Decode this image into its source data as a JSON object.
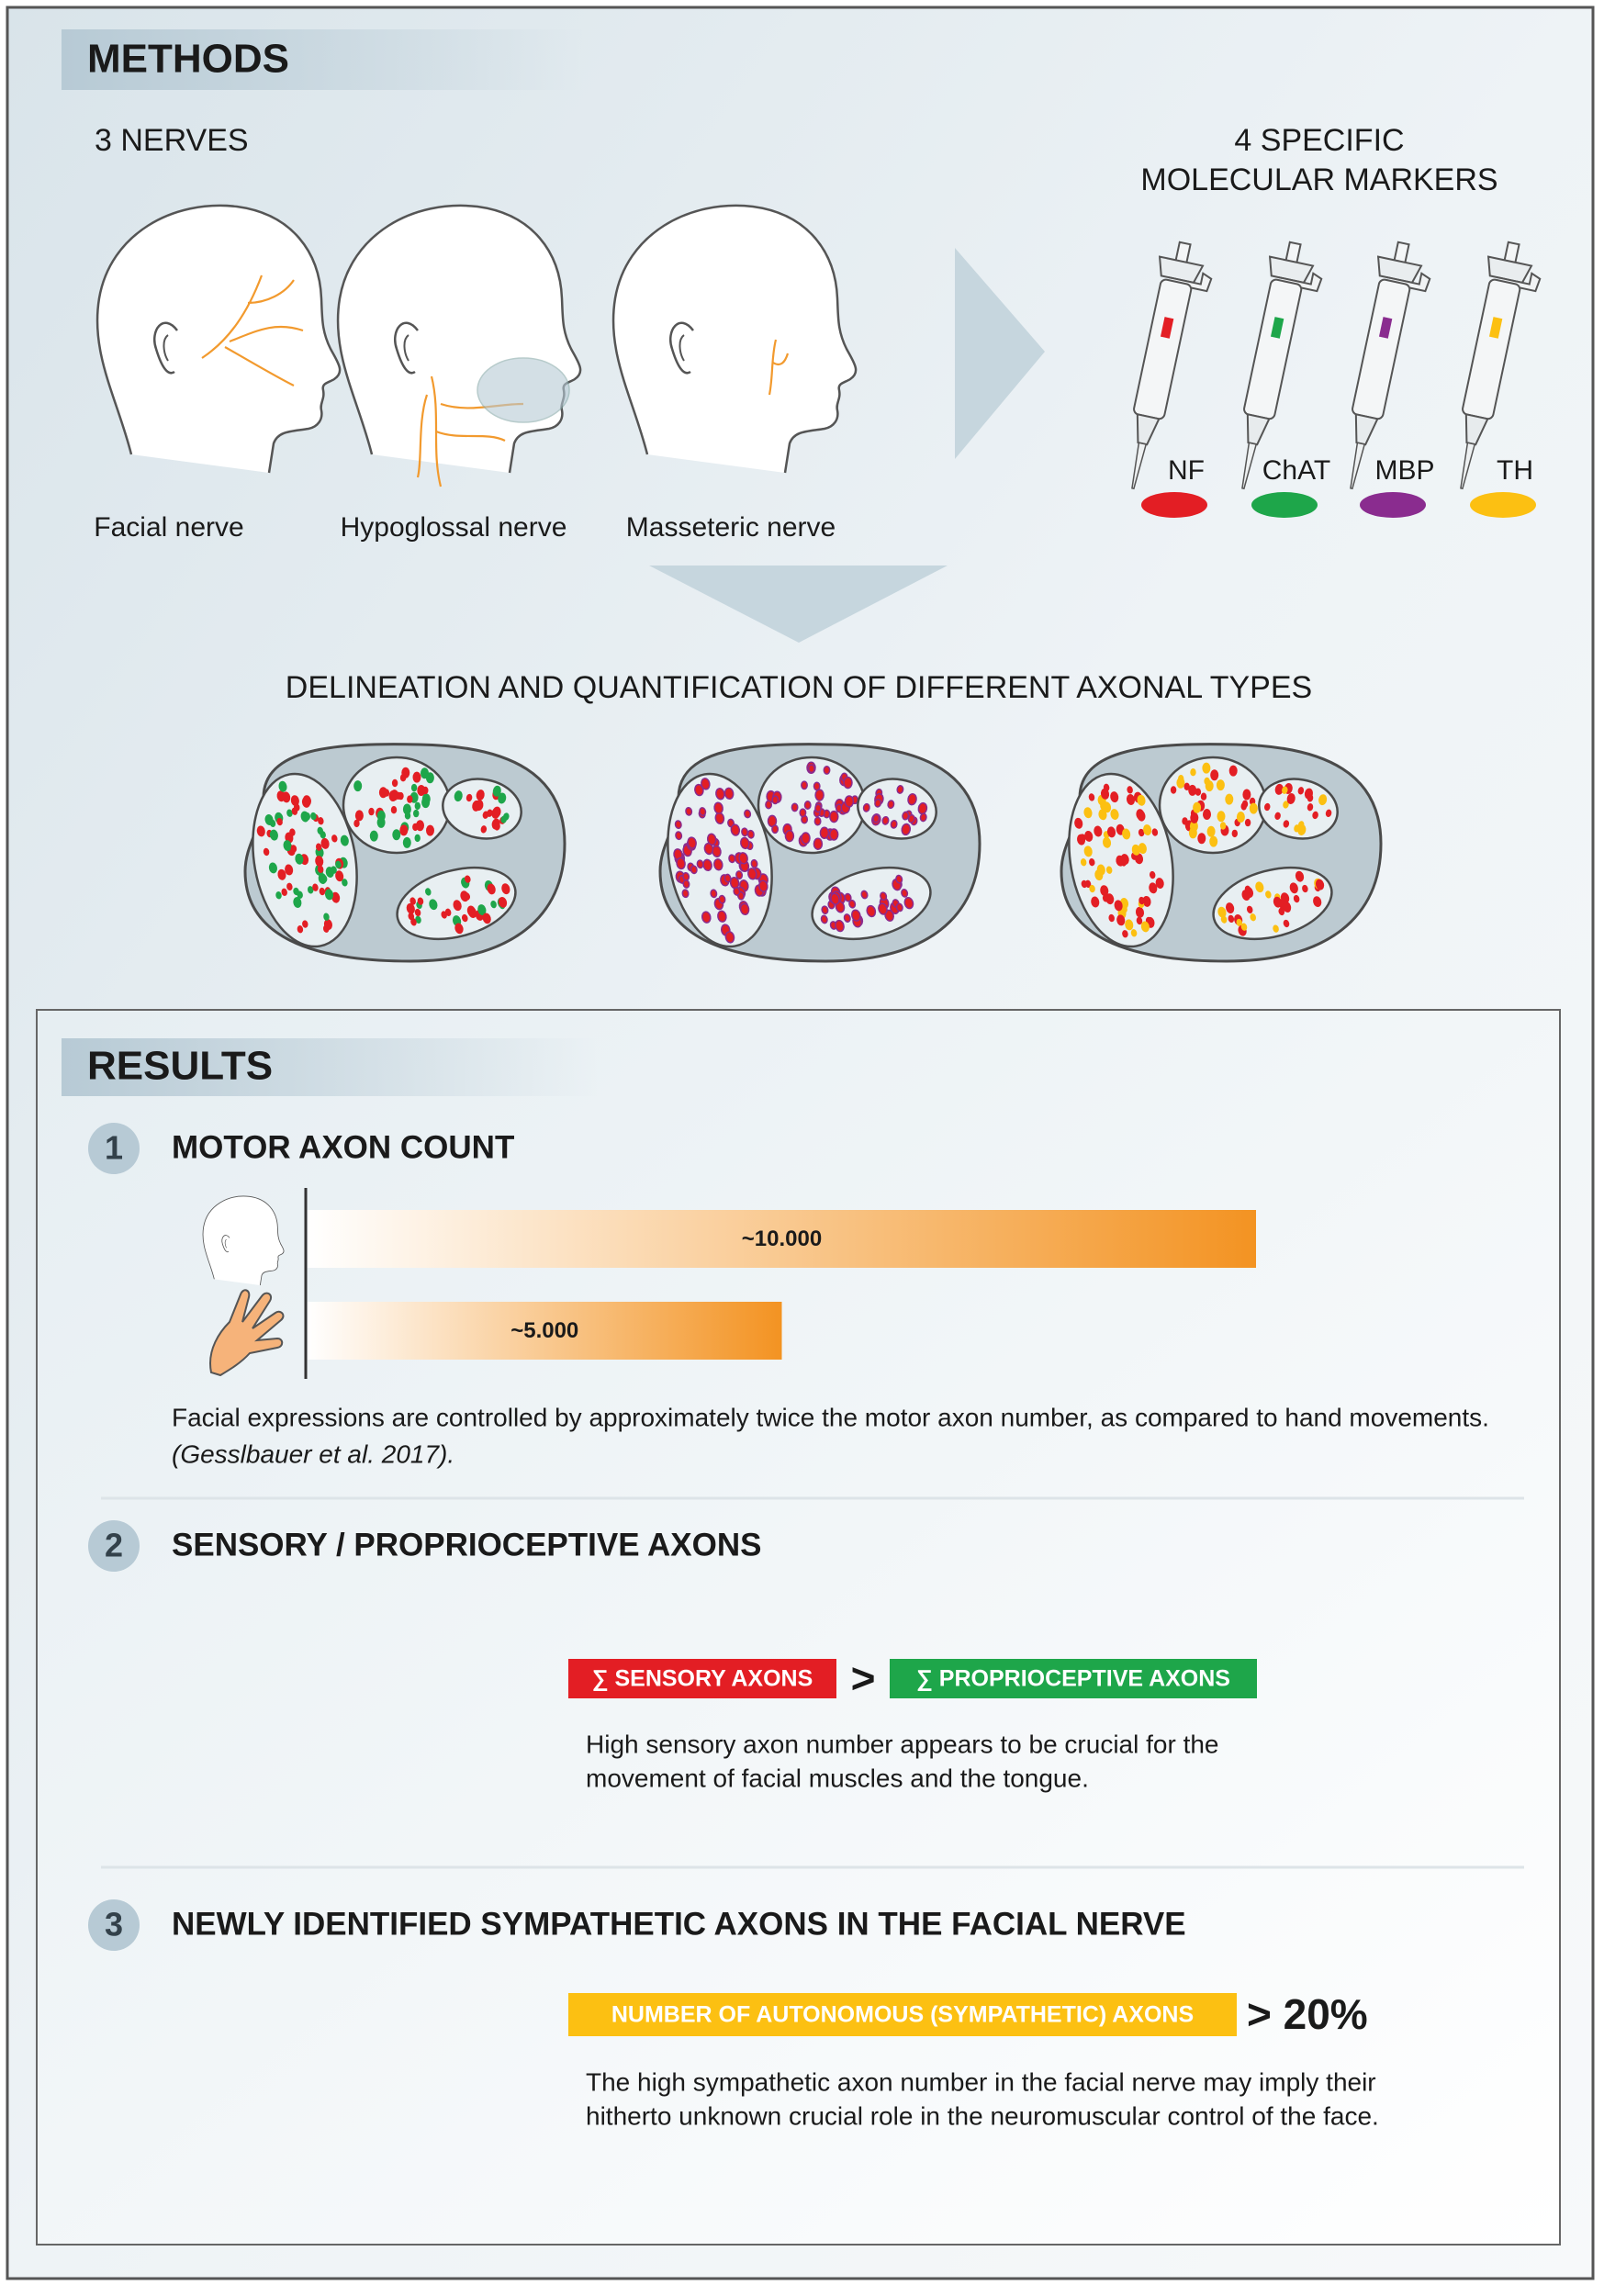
{
  "methods": {
    "title": "METHODS",
    "nerves_heading": "3 NERVES",
    "nerves": [
      "Facial nerve",
      "Hypoglossal nerve",
      "Masseteric nerve"
    ],
    "markers_heading": [
      "4 SPECIFIC",
      "MOLECULAR MARKERS"
    ],
    "markers": [
      {
        "label": "NF",
        "color": "#e31e24"
      },
      {
        "label": "ChAT",
        "color": "#1ea64a"
      },
      {
        "label": "MBP",
        "color": "#8a2c8f"
      },
      {
        "label": "TH",
        "color": "#fcc012"
      }
    ],
    "delineation": "DELINEATION AND QUANTIFICATION OF DIFFERENT AXONAL TYPES"
  },
  "results": {
    "title": "RESULTS",
    "items": [
      {
        "number": "1",
        "heading": "MOTOR AXON COUNT",
        "text": "Facial expressions are controlled by approximately twice the motor axon number, as compared to hand movements.",
        "reference": "(Gesslbauer et al. 2017)."
      },
      {
        "number": "2",
        "heading": "SENSORY / PROPRIOCEPTIVE AXONS",
        "left_tag": "∑ SENSORY AXONS",
        "comparator": ">",
        "right_tag": "∑ PROPRIOCEPTIVE AXONS",
        "text": [
          "High sensory axon number appears to be crucial for the",
          "movement of facial muscles and the tongue."
        ]
      },
      {
        "number": "3",
        "heading": "NEWLY IDENTIFIED SYMPATHETIC AXONS IN THE FACIAL NERVE",
        "tag": "NUMBER OF AUTONOMOUS (SYMPATHETIC) AXONS",
        "comparison": "> 20%",
        "text": [
          "The high sympathetic axon number in the facial nerve may imply their",
          "hitherto unknown crucial role in the neuromuscular control of the face."
        ]
      }
    ]
  },
  "chart_data": {
    "type": "bar",
    "orientation": "horizontal",
    "categories": [
      null,
      null
    ],
    "values": [
      10000,
      5000
    ],
    "value_labels": [
      "~10.000",
      "~5.000"
    ],
    "color": "#f39322"
  }
}
